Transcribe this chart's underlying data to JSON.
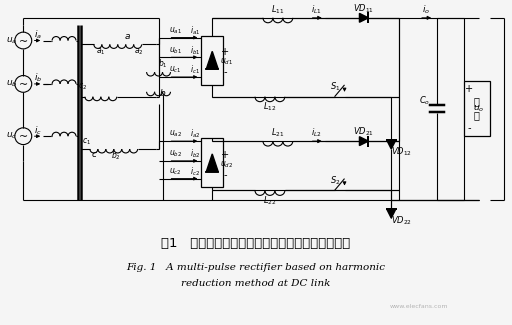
{
  "title_cn": "图1   基于直流侧有源谐波抑制方法的多脉波整流器",
  "title_en_line1": "Fig. 1   A multi-pulse rectifier based on harmonic",
  "title_en_line2": "reduction method at DC link",
  "bg_color": "#f5f5f5",
  "line_color": "#000000",
  "text_color": "#000000",
  "fig_width": 5.12,
  "fig_height": 3.25,
  "dpi": 100
}
